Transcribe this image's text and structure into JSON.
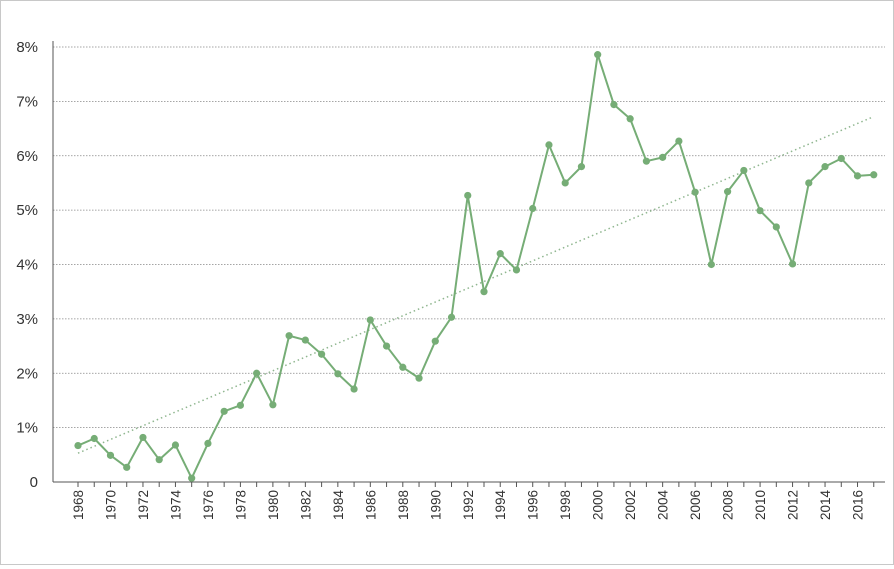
{
  "chart_data": {
    "type": "line",
    "title": "",
    "xlabel": "",
    "ylabel": "",
    "ylim": [
      0,
      8
    ],
    "yticks": [
      {
        "value": 0,
        "label": "0"
      },
      {
        "value": 1,
        "label": "1%"
      },
      {
        "value": 2,
        "label": "2%"
      },
      {
        "value": 3,
        "label": "3%"
      },
      {
        "value": 4,
        "label": "4%"
      },
      {
        "value": 5,
        "label": "5%"
      },
      {
        "value": 6,
        "label": "6%"
      },
      {
        "value": 7,
        "label": "7%"
      },
      {
        "value": 8,
        "label": "8%"
      }
    ],
    "xtick_labels": [
      "1968",
      "1970",
      "1972",
      "1974",
      "1976",
      "1978",
      "1980",
      "1982",
      "1984",
      "1986",
      "1988",
      "1990",
      "1992",
      "1994",
      "1996",
      "1998",
      "2000",
      "2002",
      "2004",
      "2006",
      "2008",
      "2010",
      "2012",
      "2014",
      "2016"
    ],
    "grid": "horizontal dotted",
    "legend": "none",
    "series": [
      {
        "name": "",
        "color": "#76ad76",
        "x": [
          1968,
          1969,
          1970,
          1971,
          1972,
          1973,
          1974,
          1975,
          1976,
          1977,
          1978,
          1979,
          1980,
          1981,
          1982,
          1983,
          1984,
          1985,
          1986,
          1987,
          1988,
          1989,
          1990,
          1991,
          1992,
          1993,
          1994,
          1995,
          1996,
          1997,
          1998,
          1999,
          2000,
          2001,
          2002,
          2003,
          2004,
          2005,
          2006,
          2007,
          2008,
          2009,
          2010,
          2011,
          2012,
          2013,
          2014,
          2015,
          2016,
          2017
        ],
        "values": [
          0.67,
          0.8,
          0.49,
          0.27,
          0.82,
          0.41,
          0.68,
          0.07,
          0.71,
          1.3,
          1.41,
          2.0,
          1.42,
          2.69,
          2.61,
          2.35,
          1.99,
          1.71,
          2.98,
          2.5,
          2.11,
          1.91,
          2.59,
          3.03,
          5.27,
          3.5,
          4.2,
          3.9,
          5.03,
          6.2,
          5.5,
          5.8,
          7.86,
          6.94,
          6.68,
          5.9,
          5.97,
          6.27,
          5.33,
          4.0,
          5.34,
          5.73,
          4.99,
          4.69,
          4.01,
          5.5,
          5.8,
          5.95,
          5.63,
          5.65
        ]
      }
    ],
    "trendline": {
      "style": "dotted",
      "color": "#8fb68f",
      "x": [
        1968,
        2017
      ],
      "values": [
        0.53,
        6.72
      ]
    }
  }
}
